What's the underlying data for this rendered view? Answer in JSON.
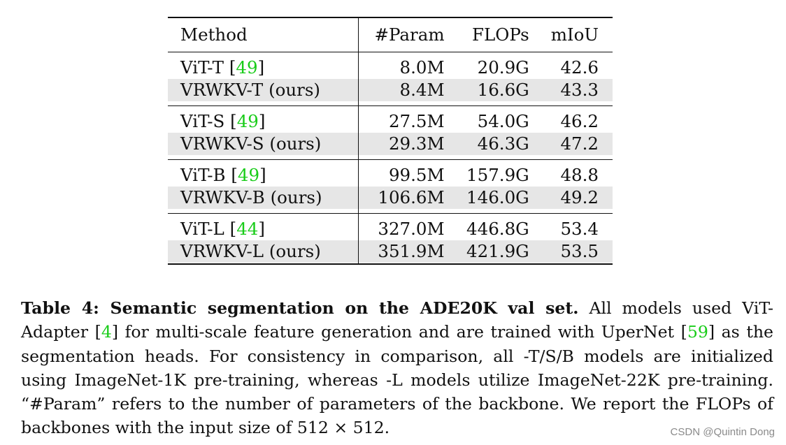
{
  "table": {
    "headers": {
      "method": "Method",
      "param": "#Param",
      "flops": "FLOPs",
      "miou": "mIoU"
    },
    "groups": [
      {
        "rows": [
          {
            "method": "ViT-T [",
            "cite": "49",
            "close": "]",
            "param": "8.0M",
            "flops": "20.9G",
            "miou": "42.6",
            "shaded": false
          },
          {
            "method": "VRWKV-T (ours)",
            "cite": "",
            "close": "",
            "param": "8.4M",
            "flops": "16.6G",
            "miou": "43.3",
            "shaded": true
          }
        ]
      },
      {
        "rows": [
          {
            "method": "ViT-S [",
            "cite": "49",
            "close": "]",
            "param": "27.5M",
            "flops": "54.0G",
            "miou": "46.2",
            "shaded": false
          },
          {
            "method": "VRWKV-S (ours)",
            "cite": "",
            "close": "",
            "param": "29.3M",
            "flops": "46.3G",
            "miou": "47.2",
            "shaded": true
          }
        ]
      },
      {
        "rows": [
          {
            "method": "ViT-B [",
            "cite": "49",
            "close": "]",
            "param": "99.5M",
            "flops": "157.9G",
            "miou": "48.8",
            "shaded": false
          },
          {
            "method": "VRWKV-B (ours)",
            "cite": "",
            "close": "",
            "param": "106.6M",
            "flops": "146.0G",
            "miou": "49.2",
            "shaded": true
          }
        ]
      },
      {
        "rows": [
          {
            "method": "ViT-L [",
            "cite": "44",
            "close": "]",
            "param": "327.0M",
            "flops": "446.8G",
            "miou": "53.4",
            "shaded": false
          },
          {
            "method": "VRWKV-L (ours)",
            "cite": "",
            "close": "",
            "param": "351.9M",
            "flops": "421.9G",
            "miou": "53.5",
            "shaded": true
          }
        ]
      }
    ]
  },
  "caption": {
    "label": "Table 4: Semantic segmentation on the ADE20K val set.",
    "part1": " All models used ViT-Adapter [",
    "cite1": "4",
    "part2": "] for multi-scale feature generation and are trained with UperNet [",
    "cite2": "59",
    "part3": "] as the segmentation heads. For consistency in comparison, all -T/S/B models are initialized using ImageNet-1K pre-training, whereas -L models utilize ImageNet-22K pre-training. “#Param” refers to the number of parameters of the backbone. We report the FLOPs of backbones with the input size of 512 × 512."
  },
  "watermark": "CSDN @Quintin Dong",
  "colors": {
    "citation": "#19cc19",
    "shade": "#e6e6e6",
    "text": "#111111"
  }
}
